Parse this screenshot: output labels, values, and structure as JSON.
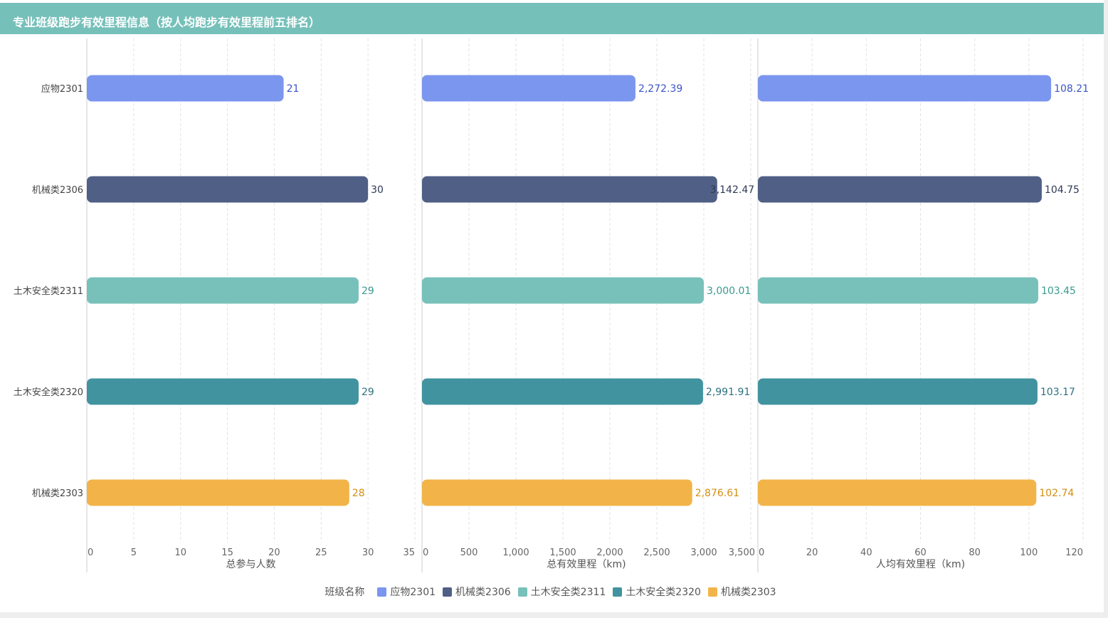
{
  "title": "专业班级跑步有效里程信息（按人均跑步有效里程前五排名）",
  "legend": {
    "title": "班级名称",
    "items": [
      {
        "label": "应物2301",
        "color": "#7b96ee"
      },
      {
        "label": "机械类2306",
        "color": "#4f5f85"
      },
      {
        "label": "土木安全类2311",
        "color": "#78c1ba"
      },
      {
        "label": "土木安全类2320",
        "color": "#4193a0"
      },
      {
        "label": "机械类2303",
        "color": "#f2b448"
      }
    ]
  },
  "chart_data": [
    {
      "type": "bar",
      "orientation": "horizontal",
      "categories": [
        "应物2301",
        "机械类2306",
        "土木安全类2311",
        "土木安全类2320",
        "机械类2303"
      ],
      "values": [
        21,
        30,
        29,
        29,
        28
      ],
      "value_labels": [
        "21",
        "30",
        "29",
        "29",
        "28"
      ],
      "xlabel": "总参与人数",
      "xlim": [
        0,
        35
      ],
      "ticks": [
        "0",
        "5",
        "10",
        "15",
        "20",
        "25",
        "30",
        "35"
      ],
      "tick_values": [
        0,
        5,
        10,
        15,
        20,
        25,
        30,
        35
      ],
      "grid": true
    },
    {
      "type": "bar",
      "orientation": "horizontal",
      "categories": [
        "应物2301",
        "机械类2306",
        "土木安全类2311",
        "土木安全类2320",
        "机械类2303"
      ],
      "values": [
        2272.39,
        3142.47,
        3000.01,
        2991.91,
        2876.61
      ],
      "value_labels": [
        "2,272.39",
        "3,142.47",
        "3,000.01",
        "2,991.91",
        "2,876.61"
      ],
      "xlabel": "总有效里程（km)",
      "xlim": [
        0,
        3500
      ],
      "ticks": [
        "0",
        "500",
        "1,000",
        "1,500",
        "2,000",
        "2,500",
        "3,000",
        "3,500"
      ],
      "tick_values": [
        0,
        500,
        1000,
        1500,
        2000,
        2500,
        3000,
        3500
      ],
      "grid": true
    },
    {
      "type": "bar",
      "orientation": "horizontal",
      "categories": [
        "应物2301",
        "机械类2306",
        "土木安全类2311",
        "土木安全类2320",
        "机械类2303"
      ],
      "values": [
        108.21,
        104.75,
        103.45,
        103.17,
        102.74
      ],
      "value_labels": [
        "108.21",
        "104.75",
        "103.45",
        "103.17",
        "102.74"
      ],
      "xlabel": "人均有效里程（km)",
      "xlim": [
        0,
        120
      ],
      "ticks": [
        "0",
        "20",
        "40",
        "60",
        "80",
        "100",
        "120"
      ],
      "tick_values": [
        0,
        20,
        40,
        60,
        80,
        100,
        120
      ],
      "grid": true
    }
  ],
  "label_colors": [
    "#3b55c9",
    "#2e3a55",
    "#3a9a90",
    "#2c7280",
    "#d38f12"
  ]
}
